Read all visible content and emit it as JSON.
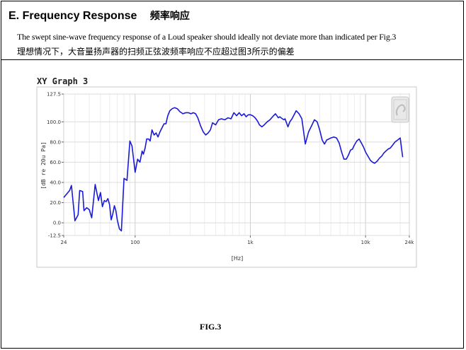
{
  "header": {
    "title": "E. Frequency Response",
    "title_cn": "频率响应"
  },
  "description": {
    "en": "The swept sine-wave frequency response of a Loud speaker should ideally not deviate more than indicated per Fig.3",
    "cn": "理想情况下，大音量扬声器的扫频正弦波频率响应不应超过图3所示的偏差"
  },
  "figure": {
    "graph_title": "XY Graph 3",
    "caption": "FIG.3"
  },
  "chart_data": {
    "type": "line",
    "title": "XY Graph 3",
    "xlabel": "[Hz]",
    "ylabel": "[dB re 20u Pa]",
    "x_scale": "log",
    "xlim": [
      24,
      24000
    ],
    "ylim": [
      -12.5,
      127.5
    ],
    "x_ticks": [
      {
        "value": 24,
        "label": "24"
      },
      {
        "value": 100,
        "label": "100"
      },
      {
        "value": 1000,
        "label": "1k"
      },
      {
        "value": 10000,
        "label": "10k"
      },
      {
        "value": 24000,
        "label": "24k"
      }
    ],
    "y_ticks": [
      {
        "value": 127.5,
        "label": "127.5"
      },
      {
        "value": 100,
        "label": "100.0"
      },
      {
        "value": 80,
        "label": "80.0"
      },
      {
        "value": 60,
        "label": "60.0"
      },
      {
        "value": 40,
        "label": "40.0"
      },
      {
        "value": 20,
        "label": "20.0"
      },
      {
        "value": 0,
        "label": "0.0"
      },
      {
        "value": -12.5,
        "label": "-12.5"
      }
    ],
    "grid": true,
    "line_color": "#1a1ad6",
    "series": [
      {
        "x": [
          24,
          27,
          28,
          30,
          32,
          33,
          35,
          36,
          38,
          40,
          42,
          45,
          48,
          50,
          52,
          54,
          56,
          58,
          60,
          62,
          64,
          66,
          68,
          70,
          73,
          76,
          80,
          85,
          90,
          94,
          100,
          105,
          110,
          115,
          118,
          122,
          126,
          131,
          135,
          140,
          146,
          152,
          158,
          164,
          171,
          178,
          185,
          192,
          200,
          210,
          220,
          232,
          245,
          260,
          275,
          290,
          305,
          320,
          335,
          350,
          370,
          390,
          410,
          430,
          450,
          470,
          500,
          530,
          560,
          600,
          640,
          680,
          720,
          760,
          800,
          840,
          880,
          920,
          960,
          1000,
          1050,
          1100,
          1150,
          1200,
          1260,
          1320,
          1400,
          1480,
          1560,
          1650,
          1700,
          1750,
          1800,
          1850,
          1900,
          1950,
          2000,
          2060,
          2120,
          2200,
          2300,
          2400,
          2500,
          2650,
          2800,
          3000,
          3200,
          3400,
          3600,
          3800,
          4000,
          4200,
          4400,
          4600,
          4800,
          5000,
          5300,
          5600,
          5900,
          6200,
          6500,
          6800,
          7100,
          7400,
          7700,
          8000,
          8400,
          8800,
          9200,
          9600,
          10000,
          10500,
          11000,
          11500,
          12000,
          12600,
          13200,
          13800,
          14400,
          15000,
          15700,
          16400,
          17200,
          18000,
          19000,
          20000,
          21000
        ],
        "y": [
          25,
          32,
          37,
          2,
          8,
          32,
          31,
          12,
          15,
          13,
          5,
          38,
          22,
          30,
          16,
          22,
          21,
          24,
          18,
          3,
          9,
          17,
          12,
          3,
          -6,
          -8,
          44,
          42,
          81,
          76,
          50,
          63,
          60,
          71,
          68,
          74,
          83,
          83,
          81,
          92,
          87,
          89,
          85,
          90,
          94,
          98,
          98,
          106,
          111,
          113,
          114,
          113,
          110,
          108,
          109,
          109,
          108,
          109,
          108,
          104,
          96,
          90,
          87,
          89,
          92,
          99,
          97,
          102,
          103,
          102,
          104,
          103,
          109,
          106,
          109,
          106,
          108,
          105,
          107,
          107,
          106,
          104,
          101,
          97,
          95,
          97,
          100,
          102,
          105,
          108,
          106,
          104,
          105,
          104,
          103,
          102,
          103,
          99,
          95,
          100,
          103,
          107,
          111,
          108,
          103,
          78,
          90,
          96,
          102,
          100,
          92,
          82,
          78,
          82,
          83,
          84,
          85,
          84,
          79,
          70,
          63,
          63,
          67,
          72,
          73,
          77,
          81,
          83,
          79,
          75,
          70,
          66,
          62,
          60,
          59,
          61,
          64,
          66,
          69,
          71,
          73,
          74,
          77,
          80,
          82,
          84,
          65
        ]
      }
    ]
  }
}
